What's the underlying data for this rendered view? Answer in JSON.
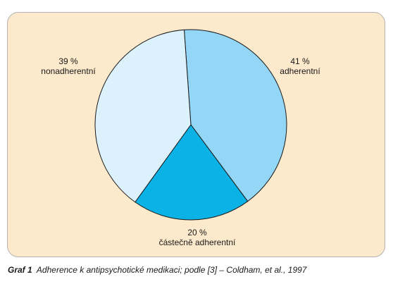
{
  "chart_data": {
    "type": "pie",
    "start_angle_deg": -4,
    "clockwise": true,
    "slices": [
      {
        "pct_label": "41 %",
        "name": "adherentní",
        "value": 41,
        "color": "#93d6f6"
      },
      {
        "pct_label": "20 %",
        "name": "částečně adherentní",
        "value": 20,
        "color": "#0bb2e6"
      },
      {
        "pct_label": "39 %",
        "name": "nonadherentní",
        "value": 39,
        "color": "#dbf1fb"
      }
    ],
    "colors": {
      "panel_background": "#fde9cb",
      "panel_border": "#b3b3b3",
      "slice_edge": "#1a1a1a"
    }
  },
  "caption": {
    "number": "Graf 1",
    "text": "Adherence k antipsychotické medikaci; podle [3] – Coldham, et al., 1997"
  }
}
